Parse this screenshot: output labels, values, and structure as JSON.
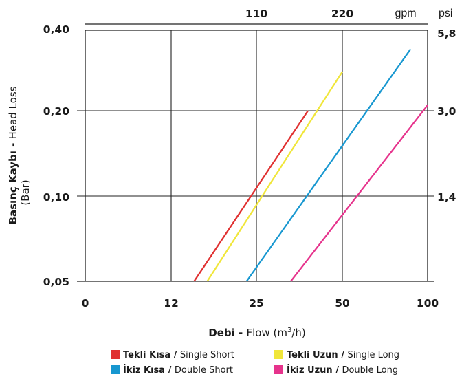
{
  "chart_data": {
    "type": "line",
    "x_axis": {
      "label_bold": "Debi",
      "label_sep": " - ",
      "label_text": "Flow (m",
      "label_sup": "3",
      "label_end": "/h)",
      "ticks": [
        "0",
        "12",
        "25",
        "50",
        "100"
      ],
      "top_ticks": [
        "110",
        "220"
      ],
      "top_unit": "gpm"
    },
    "y_axis": {
      "label_bold": "Basınç Kaybı",
      "label_sep": " - ",
      "label_text": "Head Loss",
      "label_sub": "(Bar)",
      "ticks": [
        "0,05",
        "0,10",
        "0,20",
        "0,40"
      ],
      "right_unit": "psi",
      "right_ticks": [
        "5,8",
        "3,0",
        "1,4"
      ],
      "scale": "log"
    },
    "grid": true,
    "legend_position": "bottom",
    "series": [
      {
        "name_bold": "Tekli Kısa",
        "name_rest": "Single Short",
        "color": "#e03030",
        "points": [
          [
            15.5,
            0.05
          ],
          [
            40,
            0.2
          ]
        ]
      },
      {
        "name_bold": "Tekli Uzun",
        "name_rest": "Single Long",
        "color": "#f0e63a",
        "points": [
          [
            17.5,
            0.05
          ],
          [
            50,
            0.28
          ]
        ]
      },
      {
        "name_bold": "İkiz Kısa",
        "name_rest": "Double Short",
        "color": "#1797d0",
        "points": [
          [
            23.5,
            0.05
          ],
          [
            90,
            0.34
          ]
        ]
      },
      {
        "name_bold": "İkiz Uzun",
        "name_rest": "Double Long",
        "color": "#e6338c",
        "points": [
          [
            35,
            0.05
          ],
          [
            100,
            0.21
          ]
        ]
      }
    ]
  }
}
